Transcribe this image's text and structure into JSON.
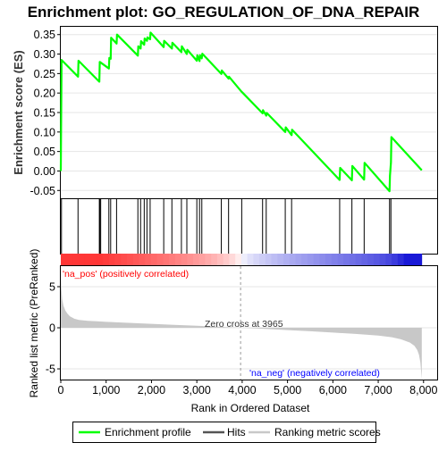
{
  "title": "Enrichment plot: GO_REGULATION_OF_DNA_REPAIR",
  "colors": {
    "profile": "#00ff00",
    "hits": "#000000",
    "ranked": "#c8c8c8",
    "pos_text": "#ff0000",
    "neg_text": "#0000ff",
    "zero_line": "#999999"
  },
  "labels": {
    "pos": "'na_pos' (positively correlated)",
    "neg": "'na_neg' (negatively correlated)",
    "zero_cross": "Zero cross at 3965"
  },
  "legend": [
    {
      "label": "Enrichment profile",
      "color": "#00ff00"
    },
    {
      "label": "Hits",
      "color": "#555555"
    },
    {
      "label": "Ranking metric scores",
      "color": "#c8c8c8"
    }
  ],
  "chart_data": [
    {
      "type": "line",
      "title": "Enrichment plot: GO_REGULATION_OF_DNA_REPAIR",
      "xlabel": "",
      "ylabel": "Enrichment score (ES)",
      "xlim": [
        0,
        8300
      ],
      "ylim": [
        -0.07,
        0.37
      ],
      "yticks": [
        -0.05,
        0.0,
        0.05,
        0.1,
        0.15,
        0.2,
        0.25,
        0.3,
        0.35
      ],
      "ytick_labels": [
        "-0.05",
        "0.00",
        "0.05",
        "0.10",
        "0.15",
        "0.20",
        "0.25",
        "0.30",
        "0.35"
      ],
      "series": [
        {
          "x": [
            0,
            15,
            15,
            380,
            390,
            850,
            860,
            1060,
            1070,
            1100,
            1110,
            1230,
            1240,
            1700,
            1710,
            1760,
            1770,
            1840,
            1850,
            1900,
            1910,
            1970,
            1980,
            2270,
            2280,
            2450,
            2460,
            2660,
            2670,
            2780,
            2790,
            3000,
            3010,
            3060,
            3070,
            3110,
            3120,
            3540,
            3550,
            3700,
            3710,
            3990,
            4000,
            4450,
            4460,
            4530,
            4540,
            4950,
            4960,
            5090,
            5100,
            6150,
            6160,
            6420,
            6430,
            6690,
            6700,
            7250,
            7260,
            7280,
            7290,
            7960
          ],
          "y": [
            0.0,
            0.26,
            0.285,
            0.242,
            0.283,
            0.229,
            0.28,
            0.263,
            0.29,
            0.288,
            0.342,
            0.327,
            0.35,
            0.296,
            0.32,
            0.314,
            0.333,
            0.324,
            0.34,
            0.334,
            0.343,
            0.338,
            0.355,
            0.318,
            0.334,
            0.314,
            0.329,
            0.305,
            0.32,
            0.3,
            0.311,
            0.283,
            0.297,
            0.282,
            0.297,
            0.289,
            0.301,
            0.249,
            0.258,
            0.237,
            0.242,
            0.203,
            0.202,
            0.148,
            0.156,
            0.142,
            0.149,
            0.1,
            0.112,
            0.092,
            0.106,
            -0.023,
            0.008,
            -0.024,
            0.013,
            -0.022,
            0.021,
            -0.052,
            -0.012,
            0.022,
            0.087,
            0.002
          ]
        }
      ]
    },
    {
      "type": "scatter",
      "title": "",
      "xlabel": "",
      "ylabel": "",
      "hits": [
        15,
        380,
        850,
        860,
        880,
        1060,
        1100,
        1230,
        1700,
        1760,
        1840,
        1900,
        1970,
        2270,
        2450,
        2660,
        2780,
        3000,
        3060,
        3110,
        3540,
        3700,
        3990,
        4450,
        4530,
        4950,
        5090,
        6150,
        6420,
        6690,
        7250,
        7280
      ]
    },
    {
      "type": "area",
      "title": "",
      "xlabel": "Rank in Ordered Dataset",
      "ylabel": "Ranked list metric (PreRanked)",
      "xlim": [
        0,
        8300
      ],
      "ylim": [
        -6.3,
        7.5
      ],
      "xticks": [
        0,
        1000,
        2000,
        3000,
        4000,
        5000,
        6000,
        7000,
        8000
      ],
      "xtick_labels": [
        "0",
        "1,000",
        "2,000",
        "3,000",
        "4,000",
        "5,000",
        "6,000",
        "7,000",
        "8,000"
      ],
      "yticks": [
        -5,
        0,
        5
      ],
      "ytick_labels": [
        "-5",
        "0",
        "5"
      ],
      "zero_cross": 3965,
      "x": [
        0,
        10,
        30,
        60,
        100,
        150,
        200,
        300,
        400,
        600,
        800,
        1000,
        1500,
        2000,
        2500,
        3000,
        3500,
        3965,
        4500,
        5000,
        5500,
        6000,
        6500,
        7000,
        7300,
        7500,
        7700,
        7800,
        7860,
        7900,
        7930,
        7950,
        7960
      ],
      "values": [
        7.0,
        5.0,
        3.5,
        2.7,
        2.1,
        1.7,
        1.4,
        1.1,
        0.95,
        0.85,
        0.78,
        0.72,
        0.6,
        0.48,
        0.36,
        0.24,
        0.12,
        0.0,
        -0.14,
        -0.28,
        -0.42,
        -0.58,
        -0.75,
        -0.95,
        -1.15,
        -1.4,
        -1.8,
        -2.2,
        -2.7,
        -3.3,
        -4.2,
        -5.5,
        -6.2
      ]
    }
  ]
}
